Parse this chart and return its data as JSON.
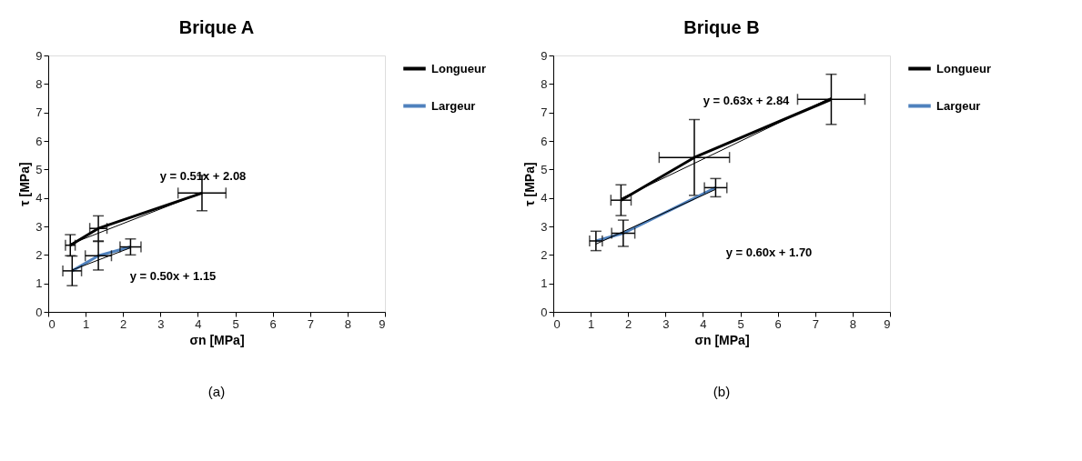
{
  "chart_data": [
    {
      "type": "line",
      "title": "Brique A",
      "xlabel": "σn [MPa]",
      "ylabel": "τ [MPa]",
      "xlim": [
        0,
        9
      ],
      "xticks": [
        0,
        1,
        2,
        3,
        4,
        5,
        6,
        7,
        8,
        9
      ],
      "ylim": [
        0,
        9
      ],
      "yticks": [
        0,
        1,
        2,
        3,
        4,
        5,
        6,
        7,
        8,
        9
      ],
      "grid": false,
      "legend": "right",
      "marker": "none",
      "series": [
        {
          "name": "Longueur",
          "color": "#000000",
          "x": [
            0.59,
            1.34,
            4.11
          ],
          "values": [
            2.34,
            2.93,
            4.17
          ],
          "errors": [
            0.37,
            0.44,
            0.62
          ],
          "xerrors": [
            0.13,
            0.23,
            0.64
          ]
        },
        {
          "name": "Largeur",
          "color": "#4f81bd",
          "x": [
            0.64,
            1.34,
            2.2
          ],
          "values": [
            1.44,
            1.97,
            2.28
          ],
          "errors": [
            0.52,
            0.5,
            0.28
          ],
          "xerrors": [
            0.25,
            0.35,
            0.28
          ]
        },
        {
          "type": "line",
          "color": "#000000",
          "x": [
            0.59,
            4.11
          ],
          "values": [
            2.38,
            4.18
          ]
        },
        {
          "type": "line",
          "color": "#000000",
          "x": [
            0.64,
            2.2
          ],
          "values": [
            1.47,
            2.25
          ]
        }
      ],
      "annotations": [
        "y =  0.51x +  2.08",
        "y = 0.50x + 1.15",
        "(a)"
      ]
    },
    {
      "type": "line",
      "title": "Brique B",
      "xlabel": "σn [MPa]",
      "ylabel": "τ [MPa]",
      "xlim": [
        0,
        9
      ],
      "xticks": [
        0,
        1,
        2,
        3,
        4,
        5,
        6,
        7,
        8,
        9
      ],
      "ylim": [
        0,
        9
      ],
      "yticks": [
        0,
        1,
        2,
        3,
        4,
        5,
        6,
        7,
        8,
        9
      ],
      "grid": false,
      "legend": "right",
      "marker": "none",
      "series": [
        {
          "name": "Longueur",
          "color": "#000000",
          "x": [
            1.81,
            3.77,
            7.43
          ],
          "values": [
            3.92,
            5.42,
            7.46
          ],
          "errors": [
            0.54,
            1.33,
            0.88
          ],
          "xerrors": [
            0.27,
            0.94,
            0.9
          ]
        },
        {
          "name": "Largeur",
          "color": "#4f81bd",
          "x": [
            1.14,
            1.87,
            4.34
          ],
          "values": [
            2.49,
            2.76,
            4.36
          ],
          "errors": [
            0.34,
            0.46,
            0.32
          ],
          "xerrors": [
            0.17,
            0.31,
            0.3
          ]
        },
        {
          "type": "line",
          "color": "#000000",
          "x": [
            1.81,
            7.43
          ],
          "values": [
            3.98,
            7.52
          ]
        },
        {
          "type": "line",
          "color": "#000000",
          "x": [
            1.14,
            4.34
          ],
          "values": [
            2.38,
            4.3
          ]
        }
      ],
      "annotations": [
        "y = 0.63x + 2.84",
        "y = 0.60x + 1.70",
        "(b)"
      ]
    }
  ]
}
